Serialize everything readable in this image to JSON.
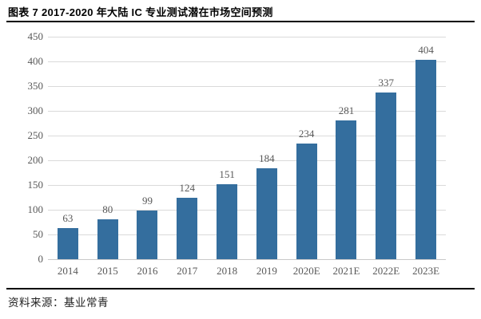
{
  "header": {
    "title": "图表 7 2017-2020 年大陆 IC 专业测试潜在市场空间预测"
  },
  "chart_data": {
    "type": "bar",
    "title": "图表 7 2017-2020 年大陆 IC 专业测试潜在市场空间预测",
    "categories": [
      "2014",
      "2015",
      "2016",
      "2017",
      "2018",
      "2019",
      "2020E",
      "2021E",
      "2022E",
      "2023E"
    ],
    "values": [
      63,
      80,
      99,
      124,
      151,
      184,
      234,
      281,
      337,
      404
    ],
    "xlabel": "",
    "ylabel": "",
    "ylim": [
      0,
      450
    ],
    "ytick_step": 50,
    "grid": true,
    "legend_position": "none",
    "value_labels": true
  },
  "footer": {
    "source_label": "资料来源：基业常青"
  },
  "colors": {
    "bar": "#346e9e",
    "gridline": "#dadada",
    "axis_line": "#c9c9c9",
    "tick_label": "#595959",
    "value_label": "#595959",
    "title_text": "#000000",
    "rule": "#000000",
    "background": "#ffffff"
  }
}
